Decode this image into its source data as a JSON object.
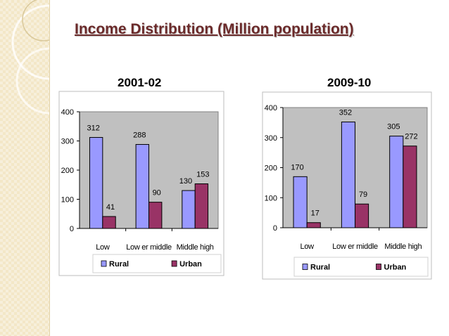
{
  "slide": {
    "title": "Income Distribution (Million population)"
  },
  "colors": {
    "rural": "#9999ff",
    "urban": "#993366",
    "plot_bg": "#c0c0c0",
    "title": "#6b2a2a"
  },
  "chart_data": [
    {
      "type": "bar",
      "title": "2001-02",
      "categories": [
        "Low",
        "Low er middle",
        "Middle high"
      ],
      "series": [
        {
          "name": "Rural",
          "values": [
            312,
            288,
            130
          ]
        },
        {
          "name": "Urban",
          "values": [
            41,
            90,
            153
          ]
        }
      ],
      "ylim": [
        0,
        400
      ],
      "yticks": [
        "0",
        "100",
        "200",
        "300",
        "400"
      ],
      "legend": "bottom",
      "grid": false
    },
    {
      "type": "bar",
      "title": "2009-10",
      "categories": [
        "Low",
        "Low er middle",
        "Middle high"
      ],
      "series": [
        {
          "name": "Rural",
          "values": [
            170,
            352,
            305
          ]
        },
        {
          "name": "Urban",
          "values": [
            17,
            79,
            272
          ]
        }
      ],
      "ylim": [
        0,
        400
      ],
      "yticks": [
        "0",
        "100",
        "200",
        "300",
        "400"
      ],
      "legend": "bottom",
      "grid": false
    }
  ]
}
